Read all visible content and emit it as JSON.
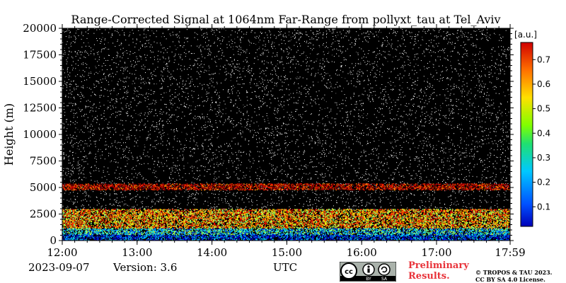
{
  "chart_data": {
    "type": "heatmap",
    "title": "Range-Corrected Signal at 1064nm Far-Range from pollyxt_tau at Tel_Aviv",
    "xlabel": "UTC",
    "ylabel": "Height (m)",
    "x_ticks": [
      "12:00",
      "13:00",
      "14:00",
      "15:00",
      "16:00",
      "17:00",
      "17:59"
    ],
    "y_ticks": [
      "0",
      "2500",
      "5000",
      "7500",
      "10000",
      "12500",
      "15000",
      "17500",
      "20000"
    ],
    "ylim": [
      0,
      20000
    ],
    "xlim_hours": [
      12.0,
      17.983
    ],
    "colorbar": {
      "unit": "[a.u.]",
      "ticks": [
        "0.1",
        "0.2",
        "0.3",
        "0.4",
        "0.5",
        "0.6",
        "0.7"
      ],
      "range": [
        0.02,
        0.77
      ],
      "colormap": "jet"
    },
    "background_color": "#000000",
    "layers": [
      {
        "from_m": 0,
        "to_m": 600,
        "value": 0.15
      },
      {
        "from_m": 600,
        "to_m": 1200,
        "value": 0.3
      },
      {
        "from_m": 1200,
        "to_m": 3000,
        "value": 0.55
      },
      {
        "from_m": 4800,
        "to_m": 5400,
        "value": 0.72
      }
    ]
  },
  "footer": {
    "date": "2023-09-07",
    "version": "Version: 3.6",
    "utc": "UTC",
    "preliminary_line1": "Preliminary",
    "preliminary_line2": "Results.",
    "copyright_line1": "© TROPOS & TAU 2023.",
    "copyright_line2": "CC BY SA 4.0 License.",
    "license_badge_by": "BY",
    "license_badge_sa": "SA"
  }
}
